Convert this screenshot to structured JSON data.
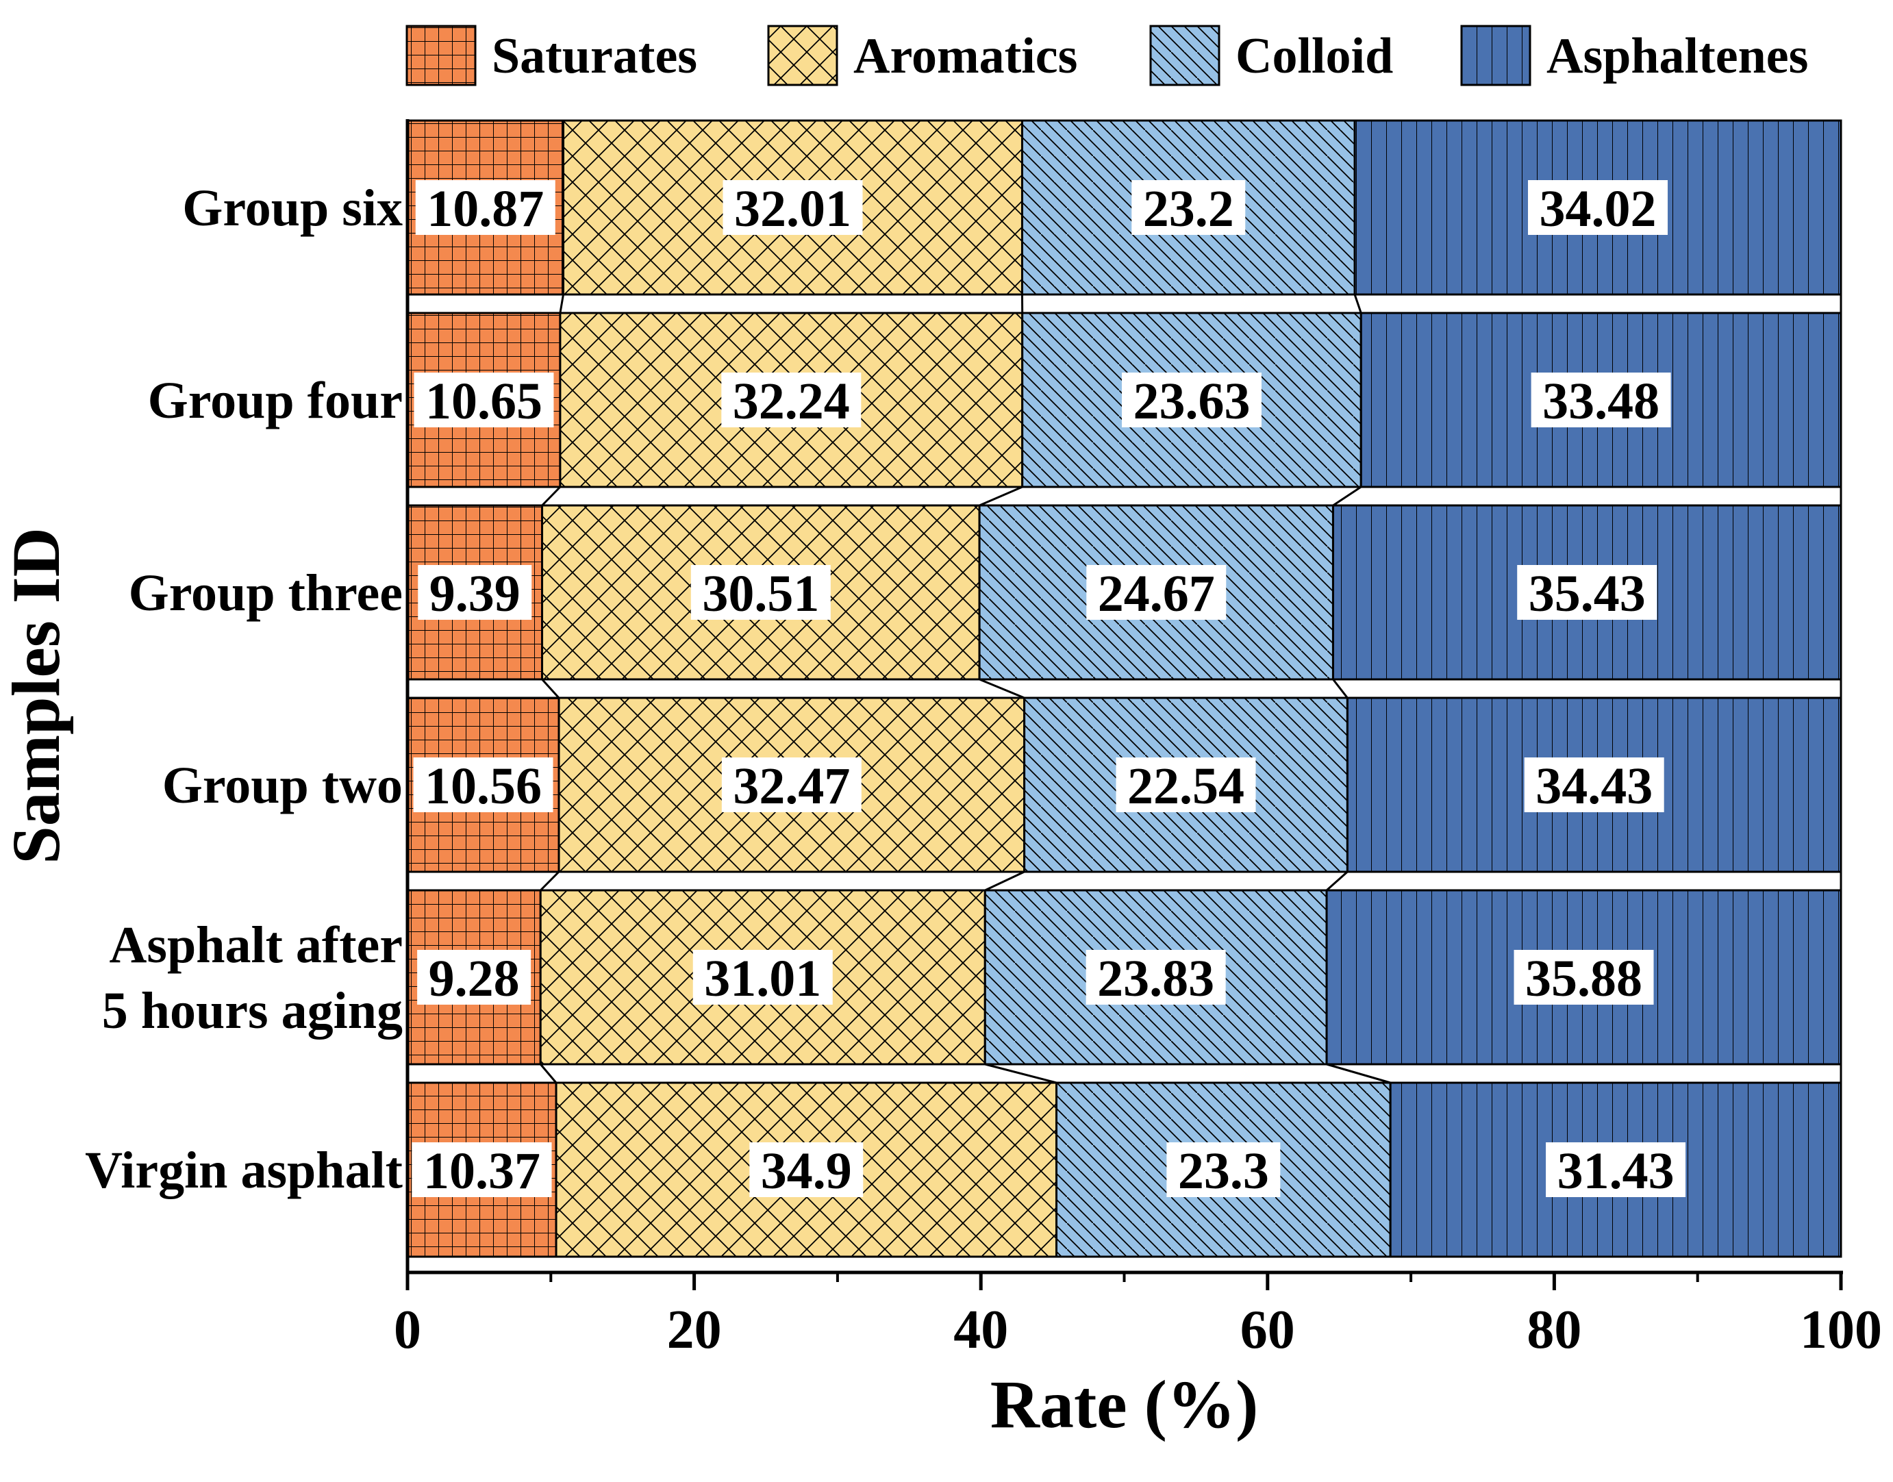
{
  "chart_data": {
    "type": "bar",
    "orientation": "horizontal",
    "stacked": true,
    "title": "",
    "xlabel": "Rate (%)",
    "ylabel": "Samples ID",
    "xlim": [
      0,
      100
    ],
    "xticks": [
      "0",
      "20",
      "40",
      "60",
      "80",
      "100"
    ],
    "categories": [
      "Virgin asphalt",
      "Asphalt after 5 hours aging",
      "Group two",
      "Group three",
      "Group four",
      "Group six"
    ],
    "category_lines": [
      [
        "Virgin asphalt"
      ],
      [
        "Asphalt after",
        "5 hours aging"
      ],
      [
        "Group two"
      ],
      [
        "Group three"
      ],
      [
        "Group four"
      ],
      [
        "Group six"
      ]
    ],
    "series": [
      {
        "name": "Saturates",
        "color": "#F4894E",
        "pattern": "grid",
        "values": [
          10.37,
          9.28,
          10.56,
          9.39,
          10.65,
          10.87
        ]
      },
      {
        "name": "Aromatics",
        "color": "#FADD91",
        "pattern": "crosshatch",
        "values": [
          34.9,
          31.01,
          32.47,
          30.51,
          32.24,
          32.01
        ]
      },
      {
        "name": "Colloid",
        "color": "#97C1E6",
        "pattern": "diagonal",
        "values": [
          23.3,
          23.83,
          22.54,
          24.67,
          23.63,
          23.2
        ]
      },
      {
        "name": "Asphaltenes",
        "color": "#4A72B0",
        "pattern": "vertical",
        "values": [
          31.43,
          35.88,
          34.43,
          35.43,
          33.48,
          34.02
        ]
      }
    ],
    "value_labels": [
      [
        "10.37",
        "9.28",
        "10.56",
        "9.39",
        "10.65",
        "10.87"
      ],
      [
        "34.9",
        "31.01",
        "32.47",
        "30.51",
        "32.24",
        "32.01"
      ],
      [
        "23.3",
        "23.83",
        "22.54",
        "24.67",
        "23.63",
        "23.2"
      ],
      [
        "31.43",
        "35.88",
        "34.43",
        "35.43",
        "33.48",
        "34.02"
      ]
    ],
    "legend": {
      "position": "top",
      "entries": [
        "Saturates",
        "Aromatics",
        "Colloid",
        "Asphaltenes"
      ]
    },
    "grid": false,
    "connector_lines": true
  }
}
